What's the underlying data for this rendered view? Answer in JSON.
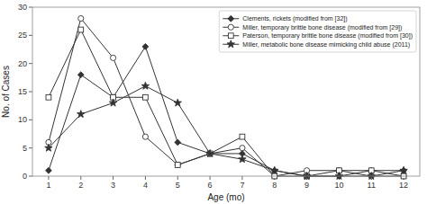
{
  "chart_data": {
    "type": "line",
    "x": [
      1,
      2,
      3,
      4,
      5,
      6,
      7,
      8,
      9,
      10,
      11,
      12
    ],
    "series": [
      {
        "name": "Clements, rickets (modified from [32])",
        "color": "#333333",
        "marker": "diamond",
        "line_style": "solid",
        "values": [
          1,
          18,
          14,
          23,
          6,
          4,
          4,
          1,
          0,
          0,
          1,
          1
        ]
      },
      {
        "name": "Miller, temporary brittle bone disease (modified from [29])",
        "color": "#333333",
        "marker": "circle-open",
        "line_style": "solid",
        "values": [
          6,
          28,
          21,
          7,
          2,
          4,
          5,
          0,
          1,
          1,
          0,
          0
        ]
      },
      {
        "name": "Paterson, temporary brittle bone disease (modified from [30])",
        "color": "#333333",
        "marker": "square-open",
        "line_style": "solid",
        "values": [
          14,
          26,
          14,
          14,
          2,
          4,
          7,
          0,
          0,
          1,
          1,
          0
        ]
      },
      {
        "name": "Miller, metabolic bone disease mimicking child abuse (2011)",
        "color": "#333333",
        "marker": "star",
        "line_style": "solid",
        "values": [
          5,
          11,
          13,
          16,
          13,
          4,
          3,
          1,
          0,
          0,
          0,
          1
        ]
      }
    ],
    "xlabel": "Age (mo)",
    "ylabel": "No. of Cases",
    "xlim": [
      0.5,
      12.5
    ],
    "ylim": [
      0,
      30
    ],
    "xticks": [
      1,
      2,
      3,
      4,
      5,
      6,
      7,
      8,
      9,
      10,
      11,
      12
    ],
    "yticks": [
      0,
      5,
      10,
      15,
      20,
      25,
      30
    ],
    "grid": false,
    "legend": "upper right"
  }
}
